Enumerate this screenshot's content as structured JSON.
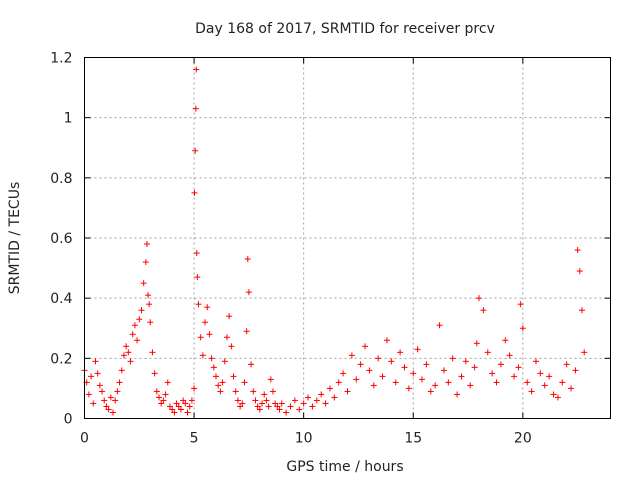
{
  "chart_data": {
    "type": "scatter",
    "title": "Day 168 of 2017, SRMTID for receiver prcv",
    "xlabel": "GPS time / hours",
    "ylabel": "SRMTID / TECUs",
    "xlim": [
      0,
      24
    ],
    "ylim": [
      0,
      1.2
    ],
    "xticks": [
      0,
      5,
      10,
      15,
      20
    ],
    "xtick_labels": [
      "0",
      "5",
      "10",
      "15",
      "20"
    ],
    "yticks": [
      0,
      0.2,
      0.4,
      0.6,
      0.8,
      1.0,
      1.2
    ],
    "ytick_labels": [
      "0",
      "0.2",
      "0.4",
      "0.6",
      "0.8",
      "1",
      "1.2"
    ],
    "grid": true,
    "marker": "+",
    "marker_color": "#ff0000",
    "series": [
      {
        "name": "SRMTID",
        "x": [
          0.0,
          0.1,
          0.2,
          0.3,
          0.4,
          0.5,
          0.6,
          0.7,
          0.8,
          0.9,
          1.0,
          1.1,
          1.2,
          1.3,
          1.4,
          1.5,
          1.6,
          1.7,
          1.8,
          1.9,
          2.0,
          2.1,
          2.2,
          2.3,
          2.4,
          2.5,
          2.6,
          2.7,
          2.8,
          2.85,
          2.9,
          2.95,
          3.0,
          3.1,
          3.2,
          3.3,
          3.4,
          3.5,
          3.6,
          3.7,
          3.8,
          3.9,
          4.0,
          4.1,
          4.2,
          4.3,
          4.4,
          4.5,
          4.6,
          4.7,
          4.8,
          4.9,
          5.0,
          5.02,
          5.05,
          5.08,
          5.1,
          5.12,
          5.15,
          5.2,
          5.3,
          5.4,
          5.5,
          5.6,
          5.7,
          5.8,
          5.9,
          6.0,
          6.1,
          6.2,
          6.3,
          6.4,
          6.5,
          6.6,
          6.7,
          6.8,
          6.9,
          7.0,
          7.1,
          7.2,
          7.3,
          7.4,
          7.45,
          7.5,
          7.6,
          7.7,
          7.8,
          7.9,
          8.0,
          8.1,
          8.2,
          8.3,
          8.4,
          8.5,
          8.6,
          8.7,
          8.8,
          8.9,
          9.0,
          9.2,
          9.4,
          9.6,
          9.8,
          10.0,
          10.2,
          10.4,
          10.6,
          10.8,
          11.0,
          11.2,
          11.4,
          11.6,
          11.8,
          12.0,
          12.2,
          12.4,
          12.6,
          12.8,
          13.0,
          13.2,
          13.4,
          13.6,
          13.8,
          14.0,
          14.2,
          14.4,
          14.6,
          14.8,
          15.0,
          15.2,
          15.4,
          15.6,
          15.8,
          16.0,
          16.2,
          16.4,
          16.6,
          16.8,
          17.0,
          17.2,
          17.4,
          17.6,
          17.8,
          17.9,
          18.0,
          18.2,
          18.4,
          18.6,
          18.8,
          19.0,
          19.2,
          19.4,
          19.6,
          19.8,
          19.9,
          20.0,
          20.2,
          20.4,
          20.6,
          20.8,
          21.0,
          21.2,
          21.4,
          21.6,
          21.8,
          22.0,
          22.2,
          22.4,
          22.5,
          22.6,
          22.7,
          22.8
        ],
        "y": [
          0.16,
          0.12,
          0.08,
          0.14,
          0.05,
          0.19,
          0.15,
          0.11,
          0.09,
          0.06,
          0.04,
          0.03,
          0.07,
          0.02,
          0.06,
          0.09,
          0.12,
          0.16,
          0.21,
          0.24,
          0.22,
          0.19,
          0.28,
          0.31,
          0.26,
          0.33,
          0.36,
          0.45,
          0.52,
          0.58,
          0.41,
          0.38,
          0.32,
          0.22,
          0.15,
          0.09,
          0.07,
          0.05,
          0.06,
          0.08,
          0.12,
          0.04,
          0.03,
          0.02,
          0.05,
          0.04,
          0.03,
          0.06,
          0.05,
          0.02,
          0.04,
          0.06,
          0.1,
          0.75,
          0.89,
          1.03,
          1.16,
          0.55,
          0.47,
          0.38,
          0.27,
          0.21,
          0.32,
          0.37,
          0.28,
          0.2,
          0.17,
          0.14,
          0.11,
          0.09,
          0.12,
          0.19,
          0.27,
          0.34,
          0.24,
          0.14,
          0.09,
          0.06,
          0.04,
          0.05,
          0.12,
          0.29,
          0.53,
          0.42,
          0.18,
          0.09,
          0.06,
          0.04,
          0.03,
          0.05,
          0.08,
          0.06,
          0.04,
          0.13,
          0.09,
          0.05,
          0.04,
          0.03,
          0.05,
          0.02,
          0.04,
          0.06,
          0.03,
          0.05,
          0.07,
          0.04,
          0.06,
          0.08,
          0.05,
          0.1,
          0.07,
          0.12,
          0.15,
          0.09,
          0.21,
          0.13,
          0.18,
          0.24,
          0.16,
          0.11,
          0.2,
          0.14,
          0.26,
          0.19,
          0.12,
          0.22,
          0.17,
          0.1,
          0.15,
          0.23,
          0.13,
          0.18,
          0.09,
          0.11,
          0.31,
          0.16,
          0.12,
          0.2,
          0.08,
          0.14,
          0.19,
          0.11,
          0.17,
          0.25,
          0.4,
          0.36,
          0.22,
          0.15,
          0.12,
          0.18,
          0.26,
          0.21,
          0.14,
          0.17,
          0.38,
          0.3,
          0.12,
          0.09,
          0.19,
          0.15,
          0.11,
          0.14,
          0.08,
          0.07,
          0.12,
          0.18,
          0.1,
          0.16,
          0.56,
          0.49,
          0.36,
          0.22
        ]
      }
    ],
    "xtick_extra": []
  }
}
